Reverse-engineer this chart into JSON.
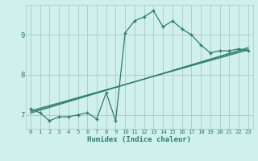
{
  "xlabel": "Humidex (Indice chaleur)",
  "bg_color": "#cff0eb",
  "line_color": "#2d7d6e",
  "grid_color": "#b0c8c4",
  "xlim": [
    -0.5,
    23.5
  ],
  "ylim": [
    6.65,
    9.75
  ],
  "xticks": [
    0,
    1,
    2,
    3,
    4,
    5,
    6,
    7,
    8,
    9,
    10,
    11,
    12,
    13,
    14,
    15,
    16,
    17,
    18,
    19,
    20,
    21,
    22,
    23
  ],
  "yticks": [
    7,
    8,
    9
  ],
  "main_x": [
    0,
    1,
    2,
    3,
    4,
    5,
    6,
    7,
    8,
    9,
    10,
    11,
    12,
    13,
    14,
    15,
    16,
    17,
    18,
    19,
    20,
    21,
    22,
    23
  ],
  "main_y": [
    7.15,
    7.05,
    6.85,
    6.95,
    6.95,
    7.0,
    7.05,
    6.9,
    7.55,
    6.85,
    9.05,
    9.35,
    9.45,
    9.6,
    9.2,
    9.35,
    9.15,
    9.0,
    8.75,
    8.55,
    8.6,
    8.6,
    8.65,
    8.6
  ],
  "trend1_x": [
    0,
    23
  ],
  "trend1_y": [
    7.1,
    8.62
  ],
  "trend2_x": [
    0,
    23
  ],
  "trend2_y": [
    7.07,
    8.65
  ],
  "trend3_x": [
    0,
    23
  ],
  "trend3_y": [
    7.04,
    8.68
  ]
}
